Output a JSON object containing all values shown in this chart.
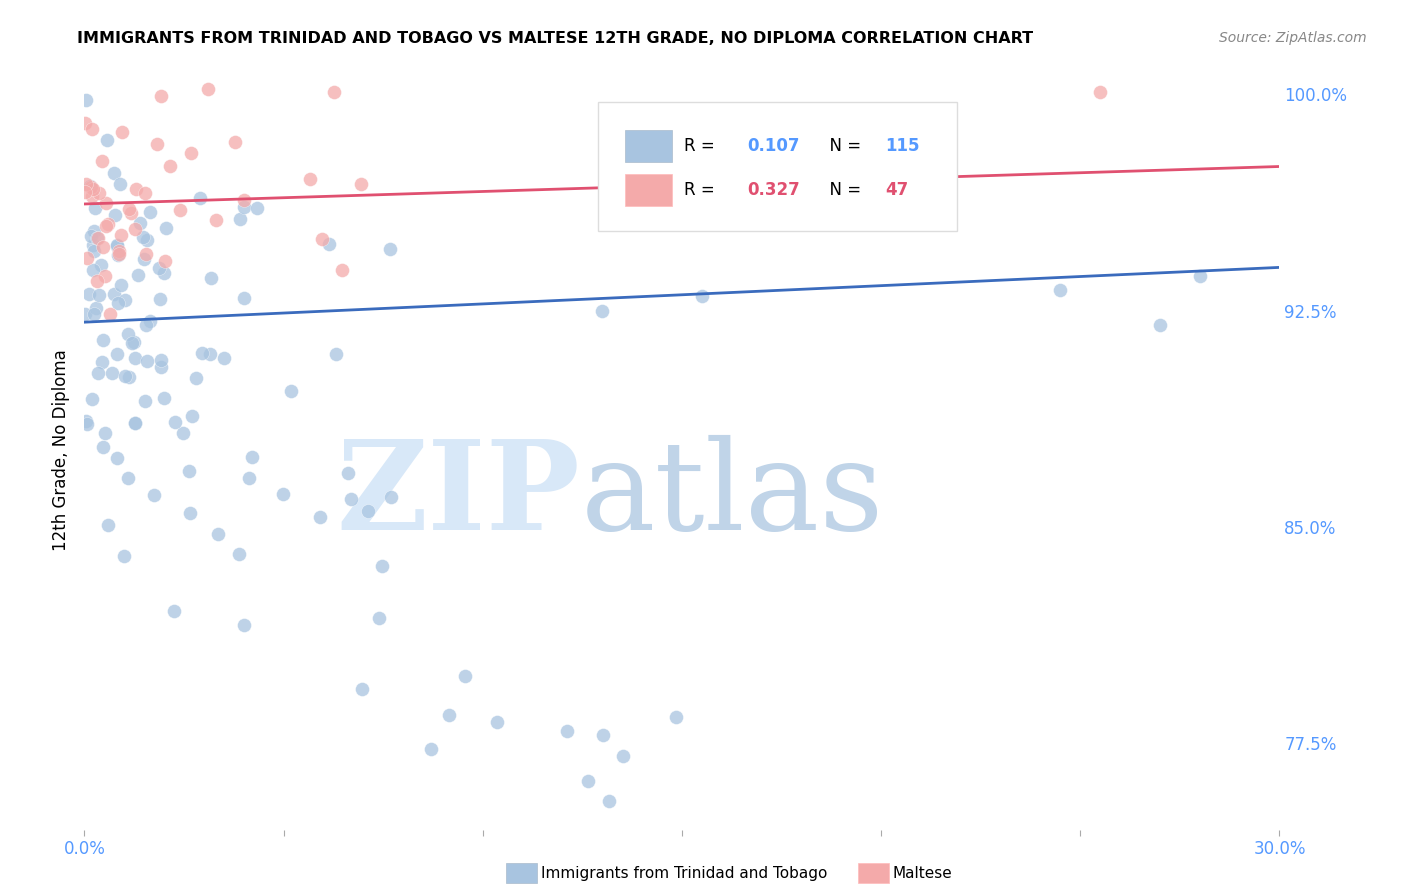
{
  "title": "IMMIGRANTS FROM TRINIDAD AND TOBAGO VS MALTESE 12TH GRADE, NO DIPLOMA CORRELATION CHART",
  "source": "Source: ZipAtlas.com",
  "ylabel_label": "12th Grade, No Diploma",
  "legend_blue_label": "Immigrants from Trinidad and Tobago",
  "legend_pink_label": "Maltese",
  "R_blue": 0.107,
  "N_blue": 115,
  "R_pink": 0.327,
  "N_pink": 47,
  "xlim": [
    0.0,
    0.3
  ],
  "ylim": [
    0.745,
    1.008
  ],
  "yticks": [
    0.775,
    0.85,
    0.925,
    1.0
  ],
  "ytick_labels": [
    "77.5%",
    "85.0%",
    "92.5%",
    "100.0%"
  ],
  "xticks": [
    0.0,
    0.05,
    0.1,
    0.15,
    0.2,
    0.25,
    0.3
  ],
  "blue_color": "#A8C4E0",
  "pink_color": "#F4AAAA",
  "blue_line_color": "#3A6BBD",
  "pink_line_color": "#E05070",
  "axis_tick_color": "#5599FF",
  "background_color": "#FFFFFF",
  "watermark_zip_color": "#D8E8F8",
  "watermark_atlas_color": "#C0D4E8"
}
